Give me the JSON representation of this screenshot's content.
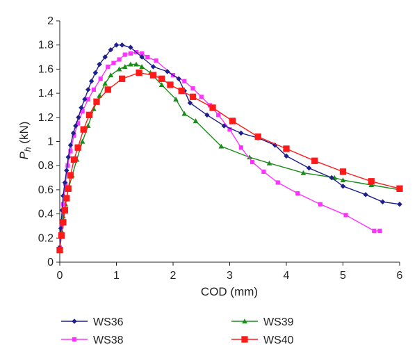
{
  "chart_data": {
    "type": "line",
    "title": "",
    "xlabel": "COD (mm)",
    "ylabel": {
      "main": "P",
      "sub": "h",
      "unit": " (kN)"
    },
    "xlim": [
      0,
      6
    ],
    "ylim": [
      0,
      2
    ],
    "xticks": [
      0,
      1,
      2,
      3,
      4,
      5,
      6
    ],
    "yticks": [
      0,
      0.2,
      0.4,
      0.6,
      0.8,
      1,
      1.2,
      1.4,
      1.6,
      1.8,
      2
    ],
    "grid": false,
    "legend_position": "bottom",
    "series": [
      {
        "name": "WS36",
        "color": "#1f1f8c",
        "marker": "diamond",
        "points": [
          [
            0.0,
            0.12
          ],
          [
            0.02,
            0.28
          ],
          [
            0.04,
            0.43
          ],
          [
            0.06,
            0.55
          ],
          [
            0.09,
            0.66
          ],
          [
            0.12,
            0.76
          ],
          [
            0.15,
            0.87
          ],
          [
            0.19,
            0.97
          ],
          [
            0.24,
            1.07
          ],
          [
            0.28,
            1.13
          ],
          [
            0.33,
            1.2
          ],
          [
            0.38,
            1.28
          ],
          [
            0.44,
            1.35
          ],
          [
            0.5,
            1.43
          ],
          [
            0.56,
            1.5
          ],
          [
            0.63,
            1.57
          ],
          [
            0.7,
            1.64
          ],
          [
            0.8,
            1.7
          ],
          [
            0.9,
            1.76
          ],
          [
            1.0,
            1.8
          ],
          [
            1.1,
            1.8
          ],
          [
            1.25,
            1.78
          ],
          [
            1.45,
            1.7
          ],
          [
            1.65,
            1.62
          ],
          [
            1.9,
            1.58
          ],
          [
            2.1,
            1.52
          ],
          [
            2.2,
            1.42
          ],
          [
            2.3,
            1.32
          ],
          [
            2.6,
            1.22
          ],
          [
            2.9,
            1.13
          ],
          [
            3.2,
            1.07
          ],
          [
            3.5,
            1.03
          ],
          [
            3.8,
            0.97
          ],
          [
            4.0,
            0.88
          ],
          [
            4.4,
            0.78
          ],
          [
            4.8,
            0.7
          ],
          [
            5.0,
            0.63
          ],
          [
            5.4,
            0.56
          ],
          [
            5.7,
            0.5
          ],
          [
            6.0,
            0.48
          ]
        ]
      },
      {
        "name": "WS38",
        "color": "#ff33ff",
        "marker": "square",
        "points": [
          [
            0.0,
            0.12
          ],
          [
            0.03,
            0.3
          ],
          [
            0.06,
            0.48
          ],
          [
            0.1,
            0.65
          ],
          [
            0.14,
            0.8
          ],
          [
            0.19,
            0.92
          ],
          [
            0.25,
            1.05
          ],
          [
            0.32,
            1.15
          ],
          [
            0.4,
            1.25
          ],
          [
            0.5,
            1.35
          ],
          [
            0.6,
            1.43
          ],
          [
            0.72,
            1.52
          ],
          [
            0.85,
            1.62
          ],
          [
            0.95,
            1.65
          ],
          [
            1.05,
            1.68
          ],
          [
            1.15,
            1.72
          ],
          [
            1.25,
            1.73
          ],
          [
            1.35,
            1.74
          ],
          [
            1.45,
            1.73
          ],
          [
            1.55,
            1.7
          ],
          [
            1.7,
            1.67
          ],
          [
            2.0,
            1.55
          ],
          [
            2.2,
            1.5
          ],
          [
            2.35,
            1.44
          ],
          [
            2.5,
            1.37
          ],
          [
            2.65,
            1.3
          ],
          [
            2.8,
            1.22
          ],
          [
            3.0,
            1.1
          ],
          [
            3.2,
            0.95
          ],
          [
            3.4,
            0.83
          ],
          [
            3.6,
            0.75
          ],
          [
            3.85,
            0.66
          ],
          [
            4.2,
            0.57
          ],
          [
            4.6,
            0.48
          ],
          [
            5.05,
            0.39
          ],
          [
            5.55,
            0.26
          ],
          [
            5.65,
            0.26
          ]
        ]
      },
      {
        "name": "WS39",
        "color": "#1a8c1a",
        "marker": "triangle",
        "points": [
          [
            0.0,
            0.1
          ],
          [
            0.03,
            0.26
          ],
          [
            0.06,
            0.38
          ],
          [
            0.1,
            0.48
          ],
          [
            0.15,
            0.6
          ],
          [
            0.22,
            0.72
          ],
          [
            0.3,
            0.85
          ],
          [
            0.4,
            1.0
          ],
          [
            0.5,
            1.13
          ],
          [
            0.6,
            1.27
          ],
          [
            0.7,
            1.38
          ],
          [
            0.8,
            1.48
          ],
          [
            0.9,
            1.55
          ],
          [
            1.05,
            1.6
          ],
          [
            1.15,
            1.62
          ],
          [
            1.25,
            1.64
          ],
          [
            1.35,
            1.64
          ],
          [
            1.45,
            1.62
          ],
          [
            1.6,
            1.57
          ],
          [
            1.8,
            1.47
          ],
          [
            2.05,
            1.35
          ],
          [
            2.2,
            1.23
          ],
          [
            2.4,
            1.17
          ],
          [
            2.85,
            0.96
          ],
          [
            3.35,
            0.87
          ],
          [
            3.7,
            0.82
          ],
          [
            4.3,
            0.74
          ],
          [
            4.85,
            0.7
          ],
          [
            5.0,
            0.68
          ],
          [
            5.5,
            0.64
          ],
          [
            6.0,
            0.6
          ]
        ]
      },
      {
        "name": "WS40",
        "color": "#ff1a1a",
        "marker": "square",
        "points": [
          [
            0.0,
            0.1
          ],
          [
            0.03,
            0.22
          ],
          [
            0.06,
            0.33
          ],
          [
            0.09,
            0.43
          ],
          [
            0.12,
            0.53
          ],
          [
            0.15,
            0.61
          ],
          [
            0.19,
            0.72
          ],
          [
            0.25,
            0.85
          ],
          [
            0.32,
            0.95
          ],
          [
            0.42,
            1.1
          ],
          [
            0.52,
            1.22
          ],
          [
            0.65,
            1.33
          ],
          [
            0.85,
            1.43
          ],
          [
            1.1,
            1.52
          ],
          [
            1.4,
            1.57
          ],
          [
            1.65,
            1.55
          ],
          [
            1.8,
            1.52
          ],
          [
            1.95,
            1.47
          ],
          [
            2.15,
            1.42
          ],
          [
            2.35,
            1.37
          ],
          [
            2.7,
            1.28
          ],
          [
            3.05,
            1.17
          ],
          [
            3.5,
            1.04
          ],
          [
            4.0,
            0.94
          ],
          [
            4.5,
            0.84
          ],
          [
            5.0,
            0.75
          ],
          [
            5.5,
            0.67
          ],
          [
            6.0,
            0.61
          ]
        ]
      }
    ]
  }
}
